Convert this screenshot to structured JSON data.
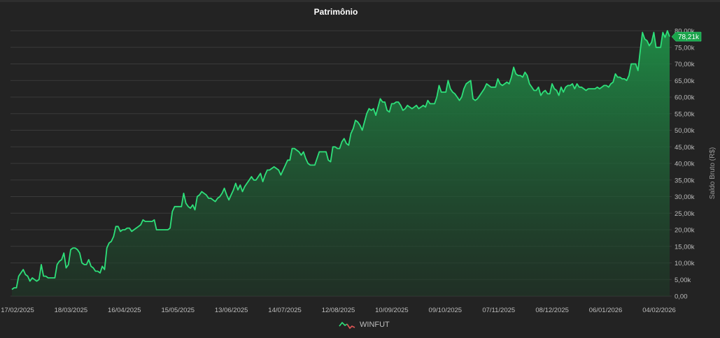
{
  "chart_data": {
    "type": "area",
    "title": "Patrimônio",
    "ylabel": "Saldo Bruto (R$)",
    "xlabel": "",
    "ylim": [
      0,
      80000
    ],
    "y_ticks": [
      0,
      5000,
      10000,
      15000,
      20000,
      25000,
      30000,
      35000,
      40000,
      45000,
      50000,
      55000,
      60000,
      65000,
      70000,
      75000,
      80000
    ],
    "y_tick_labels": [
      "0,00",
      "5,00k",
      "10,00k",
      "15,00k",
      "20,00k",
      "25,00k",
      "30,00k",
      "35,00k",
      "40,00k",
      "45,00k",
      "50,00k",
      "55,00k",
      "60,00k",
      "65,00k",
      "70,00k",
      "75,00k",
      "80,00k"
    ],
    "x_tick_labels": [
      "17/02/2025",
      "18/03/2025",
      "16/04/2025",
      "15/05/2025",
      "13/06/2025",
      "14/07/2025",
      "12/08/2025",
      "10/09/2025",
      "09/10/2025",
      "07/11/2025",
      "08/12/2025",
      "06/01/2026",
      "04/02/2026"
    ],
    "grid": true,
    "legend_position": "bottom-center",
    "last_value_label": "78,21k",
    "series": [
      {
        "name": "WINFUT",
        "color": "#2ee07a",
        "values": [
          2000,
          2500,
          2500,
          6000,
          7000,
          8000,
          6500,
          6000,
          4500,
          5500,
          5000,
          4500,
          5000,
          9500,
          6000,
          6000,
          5500,
          5500,
          5500,
          5500,
          9500,
          10500,
          11000,
          13000,
          8500,
          9500,
          14000,
          14500,
          14500,
          14000,
          13000,
          10000,
          9500,
          9500,
          11000,
          9000,
          8500,
          7500,
          7500,
          7000,
          9000,
          8000,
          14500,
          16000,
          16500,
          18000,
          21000,
          21000,
          19500,
          20000,
          20000,
          20500,
          20500,
          19500,
          20000,
          20500,
          21000,
          21500,
          23000,
          22500,
          22500,
          22500,
          22500,
          23000,
          20000,
          20000,
          20000,
          20000,
          20000,
          20000,
          20500,
          25500,
          27000,
          27000,
          27000,
          27000,
          31000,
          28000,
          27000,
          26500,
          27500,
          26000,
          30000,
          30500,
          31500,
          31000,
          30500,
          29500,
          29500,
          29000,
          28500,
          29500,
          30000,
          31000,
          32500,
          30500,
          29000,
          30500,
          32000,
          34000,
          32000,
          33500,
          31500,
          33000,
          34000,
          35000,
          36000,
          35000,
          35000,
          36000,
          37000,
          34500,
          36500,
          38000,
          38000,
          38500,
          39000,
          38500,
          38000,
          36500,
          38000,
          39500,
          41000,
          41000,
          44500,
          44500,
          44000,
          43500,
          42500,
          43500,
          41500,
          40000,
          39500,
          39500,
          39500,
          41500,
          43500,
          43500,
          43500,
          43500,
          41000,
          40500,
          45000,
          45000,
          44500,
          44500,
          46500,
          47500,
          46000,
          45500,
          49000,
          50500,
          53000,
          52500,
          51500,
          50000,
          52500,
          55000,
          56500,
          56000,
          56500,
          54500,
          57000,
          59500,
          58500,
          58500,
          56000,
          55500,
          58000,
          58000,
          58500,
          58500,
          57500,
          56000,
          56500,
          57500,
          57000,
          56500,
          57000,
          57500,
          56500,
          57000,
          57500,
          57000,
          59000,
          58000,
          58000,
          58000,
          60000,
          63500,
          61500,
          61500,
          61500,
          65000,
          62500,
          61500,
          61000,
          60000,
          59000,
          60000,
          62500,
          64000,
          64500,
          65000,
          59500,
          59000,
          59500,
          60500,
          61500,
          62500,
          64000,
          63500,
          63000,
          63000,
          63000,
          65500,
          64000,
          63500,
          64000,
          64500,
          64000,
          66000,
          69000,
          67000,
          66500,
          66500,
          66000,
          67500,
          66500,
          64000,
          63000,
          62000,
          62000,
          63000,
          60500,
          61500,
          62000,
          61000,
          61000,
          64000,
          62500,
          62000,
          60500,
          63000,
          61500,
          63000,
          63500,
          63500,
          64000,
          62500,
          64000,
          63000,
          63000,
          62500,
          62000,
          62500,
          62500,
          62500,
          62500,
          63000,
          62500,
          63000,
          63500,
          63500,
          63000,
          64000,
          64500,
          67000,
          66000,
          66000,
          65500,
          65500,
          65000,
          66500,
          70000,
          70000,
          70000,
          68000,
          74000,
          79500,
          77500,
          77000,
          75500,
          76500,
          79500,
          75000,
          75000,
          75000,
          79500,
          78000,
          80000,
          78210
        ]
      }
    ]
  }
}
